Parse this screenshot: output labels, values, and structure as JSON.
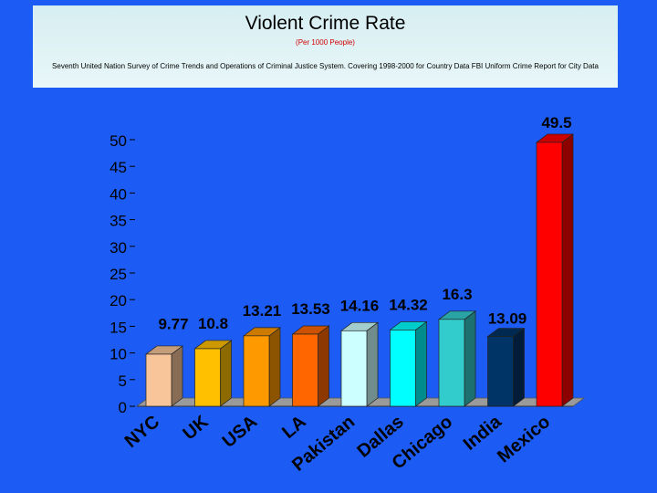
{
  "header": {
    "title": "Violent Crime Rate",
    "subtitle": "(Per 1000 People)",
    "source": "Seventh United Nation Survey of Crime Trends and Operations of Criminal Justice System. Covering 1998-2000 for Country Data FBI Uniform Crime Report for City Data"
  },
  "chart_data": {
    "type": "bar",
    "title": "Violent Crime Rate",
    "subtitle": "(Per 1000 People)",
    "categories": [
      "NYC",
      "UK",
      "USA",
      "LA",
      "Pakistan",
      "Dallas",
      "Chicago",
      "India",
      "Mexico"
    ],
    "values": [
      9.77,
      10.8,
      13.21,
      13.53,
      14.16,
      14.32,
      16.3,
      13.09,
      49.5
    ],
    "value_labels": [
      "9.77",
      "10.8",
      "13.21",
      "13.53",
      "14.16",
      "14.32",
      "16.3",
      "13.09",
      "49.5"
    ],
    "colors": [
      "#f8c49a",
      "#ffc000",
      "#ff9900",
      "#ff6600",
      "#ccffff",
      "#00ffff",
      "#33cccc",
      "#003366",
      "#ff0000"
    ],
    "yticks": [
      0,
      5,
      10,
      15,
      20,
      25,
      30,
      35,
      40,
      45,
      50
    ],
    "ylim": [
      0,
      50
    ],
    "grid": false,
    "legend": "none",
    "style": "3d-bars"
  }
}
